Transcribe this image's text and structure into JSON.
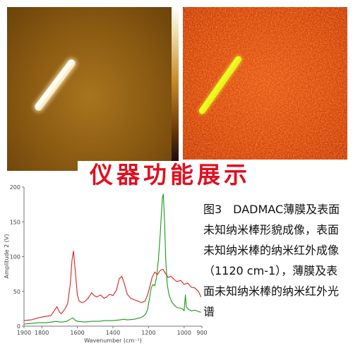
{
  "banner": {
    "text": "仪器功能展示"
  },
  "caption": {
    "text": "图3　DADMAC薄膜及表面未知纳米棒形貌成像，表面未知纳米棒的纳米红外成像（1120 cm-1），薄膜及表面未知纳米棒的纳米红外光谱"
  },
  "chart_data": {
    "type": "line",
    "xlabel": "Wavenumber (cm⁻¹)",
    "ylabel": "Amplitude 2 (V)",
    "xlim": [
      1900,
      900
    ],
    "ylim": [
      0,
      200
    ],
    "x_ticks": [
      1900,
      1800,
      1600,
      1400,
      1200,
      1000,
      900
    ],
    "y_ticks": [
      0,
      50,
      100,
      150,
      200
    ],
    "x_ticks_reversed": true,
    "grid": false,
    "colors": {
      "red": "#e02020",
      "green": "#1a9a1a"
    },
    "series": [
      {
        "color": "#e02020",
        "points": [
          [
            1900,
            8
          ],
          [
            1860,
            9
          ],
          [
            1820,
            12
          ],
          [
            1780,
            14
          ],
          [
            1750,
            15
          ],
          [
            1730,
            22
          ],
          [
            1715,
            28
          ],
          [
            1700,
            20
          ],
          [
            1690,
            18
          ],
          [
            1670,
            25
          ],
          [
            1655,
            32
          ],
          [
            1640,
            60
          ],
          [
            1630,
            95
          ],
          [
            1622,
            108
          ],
          [
            1612,
            80
          ],
          [
            1600,
            45
          ],
          [
            1590,
            36
          ],
          [
            1575,
            34
          ],
          [
            1560,
            35
          ],
          [
            1540,
            40
          ],
          [
            1520,
            48
          ],
          [
            1505,
            44
          ],
          [
            1490,
            42
          ],
          [
            1470,
            45
          ],
          [
            1450,
            40
          ],
          [
            1435,
            42
          ],
          [
            1420,
            46
          ],
          [
            1400,
            44
          ],
          [
            1380,
            52
          ],
          [
            1365,
            68
          ],
          [
            1350,
            72
          ],
          [
            1335,
            60
          ],
          [
            1320,
            46
          ],
          [
            1300,
            40
          ],
          [
            1280,
            38
          ],
          [
            1260,
            36
          ],
          [
            1240,
            34
          ],
          [
            1220,
            36
          ],
          [
            1205,
            45
          ],
          [
            1195,
            55
          ],
          [
            1180,
            70
          ],
          [
            1165,
            78
          ],
          [
            1150,
            74
          ],
          [
            1135,
            80
          ],
          [
            1120,
            82
          ],
          [
            1105,
            76
          ],
          [
            1090,
            70
          ],
          [
            1075,
            72
          ],
          [
            1060,
            68
          ],
          [
            1040,
            64
          ],
          [
            1020,
            66
          ],
          [
            1000,
            60
          ],
          [
            980,
            62
          ],
          [
            960,
            56
          ],
          [
            940,
            55
          ],
          [
            920,
            50
          ],
          [
            905,
            42
          ]
        ]
      },
      {
        "color": "#1a9a1a",
        "points": [
          [
            1900,
            3
          ],
          [
            1860,
            4
          ],
          [
            1820,
            5
          ],
          [
            1780,
            5
          ],
          [
            1740,
            6
          ],
          [
            1720,
            7
          ],
          [
            1700,
            6
          ],
          [
            1680,
            6
          ],
          [
            1660,
            7
          ],
          [
            1640,
            10
          ],
          [
            1625,
            12
          ],
          [
            1615,
            9
          ],
          [
            1600,
            7
          ],
          [
            1560,
            6
          ],
          [
            1520,
            7
          ],
          [
            1480,
            7
          ],
          [
            1440,
            8
          ],
          [
            1400,
            8
          ],
          [
            1360,
            9
          ],
          [
            1340,
            10
          ],
          [
            1320,
            9
          ],
          [
            1280,
            10
          ],
          [
            1250,
            12
          ],
          [
            1230,
            14
          ],
          [
            1215,
            18
          ],
          [
            1205,
            24
          ],
          [
            1195,
            40
          ],
          [
            1185,
            55
          ],
          [
            1175,
            60
          ],
          [
            1165,
            58
          ],
          [
            1155,
            70
          ],
          [
            1145,
            95
          ],
          [
            1135,
            130
          ],
          [
            1128,
            160
          ],
          [
            1122,
            185
          ],
          [
            1117,
            190
          ],
          [
            1110,
            150
          ],
          [
            1103,
            95
          ],
          [
            1095,
            60
          ],
          [
            1085,
            45
          ],
          [
            1070,
            35
          ],
          [
            1055,
            30
          ],
          [
            1040,
            27
          ],
          [
            1025,
            26
          ],
          [
            1010,
            25
          ],
          [
            1000,
            22
          ],
          [
            993,
            45
          ],
          [
            988,
            28
          ],
          [
            975,
            24
          ],
          [
            960,
            22
          ],
          [
            940,
            23
          ],
          [
            920,
            21
          ],
          [
            905,
            20
          ]
        ]
      }
    ]
  }
}
